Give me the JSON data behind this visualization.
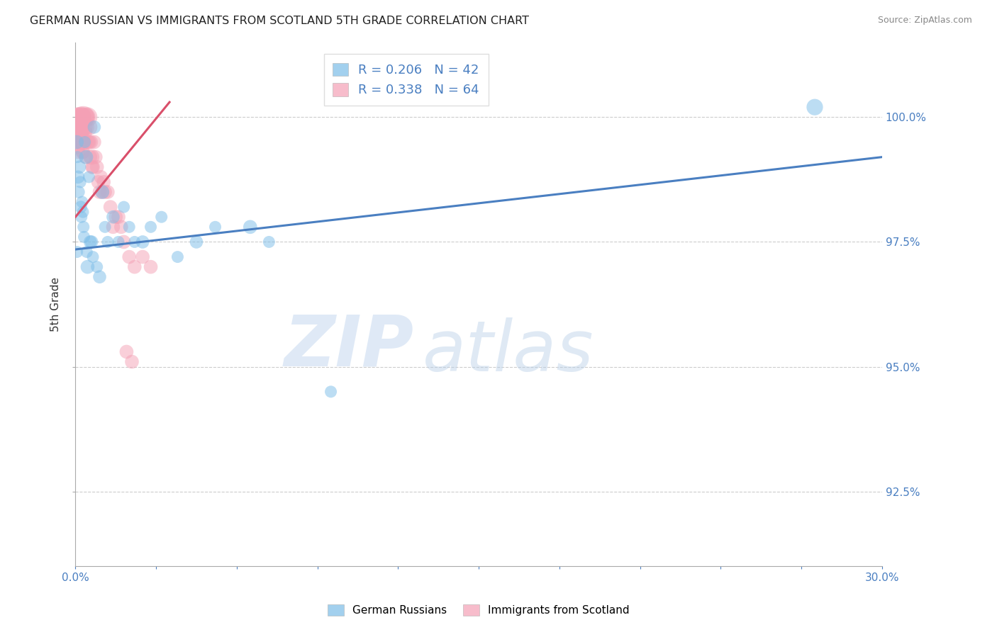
{
  "title": "GERMAN RUSSIAN VS IMMIGRANTS FROM SCOTLAND 5TH GRADE CORRELATION CHART",
  "source": "Source: ZipAtlas.com",
  "ylabel": "5th Grade",
  "xlim": [
    0.0,
    30.0
  ],
  "ylim": [
    91.0,
    101.5
  ],
  "yticks": [
    92.5,
    95.0,
    97.5,
    100.0
  ],
  "ytick_labels": [
    "92.5%",
    "95.0%",
    "97.5%",
    "100.0%"
  ],
  "xtick_vals": [
    0.0,
    3.0,
    6.0,
    9.0,
    12.0,
    15.0,
    18.0,
    21.0,
    24.0,
    27.0,
    30.0
  ],
  "legend_R_blue": "R = 0.206",
  "legend_N_blue": "N = 42",
  "legend_R_pink": "R = 0.338",
  "legend_N_pink": "N = 64",
  "blue_color": "#7bbde8",
  "pink_color": "#f4a0b5",
  "trend_blue_color": "#4a7fc1",
  "trend_pink_color": "#d94f6a",
  "watermark_zip": "ZIP",
  "watermark_atlas": "atlas",
  "blue_x": [
    0.05,
    0.08,
    0.1,
    0.12,
    0.15,
    0.18,
    0.2,
    0.22,
    0.25,
    0.28,
    0.3,
    0.32,
    0.35,
    0.4,
    0.42,
    0.45,
    0.5,
    0.55,
    0.6,
    0.65,
    0.7,
    0.8,
    0.9,
    1.0,
    1.1,
    1.2,
    1.4,
    1.6,
    1.8,
    2.0,
    2.2,
    2.5,
    2.8,
    3.2,
    3.8,
    4.5,
    5.2,
    6.5,
    7.2,
    9.5,
    27.5,
    0.06
  ],
  "blue_y": [
    99.5,
    99.2,
    98.8,
    98.5,
    99.0,
    98.7,
    98.2,
    98.0,
    98.3,
    98.1,
    97.8,
    97.6,
    99.5,
    99.2,
    97.3,
    97.0,
    98.8,
    97.5,
    97.5,
    97.2,
    99.8,
    97.0,
    96.8,
    98.5,
    97.8,
    97.5,
    98.0,
    97.5,
    98.2,
    97.8,
    97.5,
    97.5,
    97.8,
    98.0,
    97.2,
    97.5,
    97.8,
    97.8,
    97.5,
    94.5,
    100.2,
    97.3
  ],
  "blue_s": [
    200,
    150,
    180,
    160,
    180,
    150,
    160,
    150,
    150,
    150,
    150,
    150,
    150,
    200,
    150,
    200,
    150,
    180,
    180,
    150,
    180,
    150,
    180,
    200,
    150,
    150,
    180,
    150,
    150,
    150,
    150,
    180,
    150,
    150,
    150,
    180,
    150,
    200,
    150,
    150,
    280,
    150
  ],
  "pink_x": [
    0.03,
    0.05,
    0.07,
    0.08,
    0.1,
    0.11,
    0.12,
    0.13,
    0.15,
    0.17,
    0.18,
    0.2,
    0.22,
    0.23,
    0.25,
    0.27,
    0.28,
    0.3,
    0.32,
    0.33,
    0.35,
    0.37,
    0.38,
    0.4,
    0.42,
    0.45,
    0.47,
    0.5,
    0.52,
    0.55,
    0.58,
    0.6,
    0.62,
    0.65,
    0.7,
    0.75,
    0.8,
    0.85,
    0.9,
    0.95,
    1.0,
    1.05,
    1.1,
    1.2,
    1.3,
    1.4,
    1.5,
    1.6,
    1.8,
    2.0,
    2.2,
    2.5,
    0.06,
    0.09,
    0.14,
    0.16,
    0.19,
    0.24,
    0.26,
    0.29,
    1.7,
    2.8,
    1.9,
    2.1
  ],
  "pink_y": [
    99.8,
    100.0,
    99.5,
    99.7,
    100.0,
    99.3,
    99.8,
    99.5,
    99.6,
    100.0,
    100.0,
    100.0,
    99.8,
    99.5,
    100.0,
    99.7,
    99.5,
    100.0,
    99.8,
    99.5,
    100.0,
    99.7,
    99.2,
    100.0,
    99.8,
    100.0,
    99.5,
    99.8,
    99.5,
    99.2,
    99.5,
    99.2,
    99.0,
    99.0,
    99.5,
    99.2,
    99.0,
    98.7,
    98.5,
    98.8,
    98.5,
    98.7,
    98.5,
    98.5,
    98.2,
    97.8,
    98.0,
    98.0,
    97.5,
    97.2,
    97.0,
    97.2,
    99.6,
    99.4,
    99.8,
    99.5,
    99.7,
    99.7,
    99.3,
    99.3,
    97.8,
    97.0,
    95.3,
    95.1
  ],
  "pink_s": [
    200,
    350,
    200,
    200,
    400,
    200,
    250,
    200,
    300,
    200,
    350,
    450,
    300,
    200,
    350,
    200,
    250,
    500,
    300,
    250,
    350,
    200,
    200,
    350,
    250,
    400,
    200,
    300,
    200,
    200,
    200,
    250,
    200,
    200,
    200,
    200,
    200,
    200,
    200,
    200,
    200,
    200,
    200,
    200,
    200,
    200,
    200,
    200,
    200,
    200,
    200,
    200,
    200,
    200,
    200,
    200,
    200,
    200,
    200,
    200,
    200,
    200,
    200,
    200
  ]
}
